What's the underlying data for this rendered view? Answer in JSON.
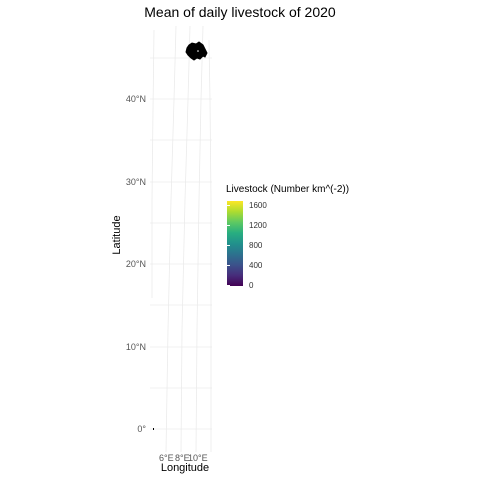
{
  "map": {
    "title": "Mean of daily livestock of 2020",
    "xlabel": "Longitude",
    "ylabel": "Latitude",
    "lat_ticks": [
      "40°N",
      "30°N",
      "20°N",
      "10°N",
      "0°"
    ],
    "lon_ticks": [
      "6°E",
      "8°E",
      "10°E"
    ],
    "grid": "on",
    "region_fill": "#000000"
  },
  "legend": {
    "title": "Livestock (Number km^(-2))",
    "position": "right",
    "ticks": [
      "0",
      "400",
      "800",
      "1200",
      "1600"
    ],
    "scale": "viridis",
    "range": [
      0,
      1700
    ]
  }
}
